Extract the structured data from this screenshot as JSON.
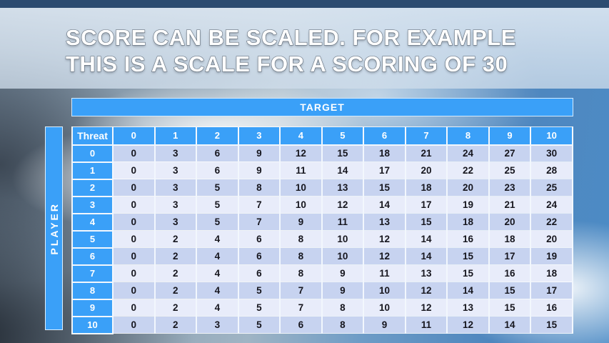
{
  "slide": {
    "title_line1": "SCORE CAN BE SCALED. FOR EXAMPLE",
    "title_line2": "THIS IS A SCALE FOR A SCORING OF 30"
  },
  "table": {
    "target_label": "TARGET",
    "player_label": "PLAYER",
    "corner_label": "Threat",
    "column_headers": [
      "0",
      "1",
      "2",
      "3",
      "4",
      "5",
      "6",
      "7",
      "8",
      "9",
      "10"
    ],
    "row_headers": [
      "0",
      "1",
      "2",
      "3",
      "4",
      "5",
      "6",
      "7",
      "8",
      "9",
      "10"
    ],
    "rows": [
      [
        0,
        3,
        6,
        9,
        12,
        15,
        18,
        21,
        24,
        27,
        30
      ],
      [
        0,
        3,
        6,
        9,
        11,
        14,
        17,
        20,
        22,
        25,
        28
      ],
      [
        0,
        3,
        5,
        8,
        10,
        13,
        15,
        18,
        20,
        23,
        25
      ],
      [
        0,
        3,
        5,
        7,
        10,
        12,
        14,
        17,
        19,
        21,
        24
      ],
      [
        0,
        3,
        5,
        7,
        9,
        11,
        13,
        15,
        18,
        20,
        22
      ],
      [
        0,
        2,
        4,
        6,
        8,
        10,
        12,
        14,
        16,
        18,
        20
      ],
      [
        0,
        2,
        4,
        6,
        8,
        10,
        12,
        14,
        15,
        17,
        19
      ],
      [
        0,
        2,
        4,
        6,
        8,
        9,
        11,
        13,
        15,
        16,
        18
      ],
      [
        0,
        2,
        4,
        5,
        7,
        9,
        10,
        12,
        14,
        15,
        17
      ],
      [
        0,
        2,
        4,
        5,
        7,
        8,
        10,
        12,
        13,
        15,
        16
      ],
      [
        0,
        2,
        3,
        5,
        6,
        8,
        9,
        11,
        12,
        14,
        15
      ]
    ]
  },
  "colors": {
    "header_blue": "#3aa0f8",
    "row_dark": "#c7d3f0",
    "row_light": "#e8ecfa",
    "grid": "#f2f7fd",
    "body_text": "#16161e",
    "top_bar": "#2b4b70"
  }
}
